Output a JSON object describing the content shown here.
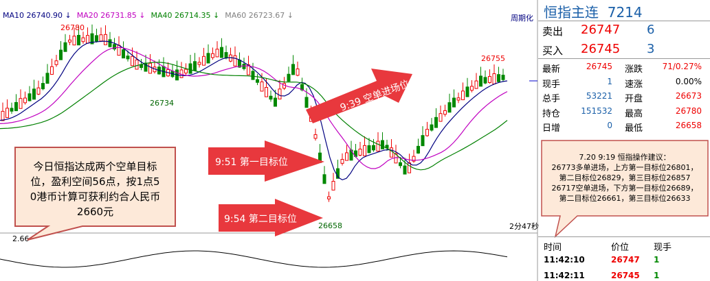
{
  "ma_legend": [
    {
      "label": "MA10",
      "value": "26740.90",
      "color": "#000080"
    },
    {
      "label": "MA20",
      "value": "26731.85",
      "color": "#c000c0"
    },
    {
      "label": "MA40",
      "value": "26714.35",
      "color": "#008000"
    },
    {
      "label": "MA60",
      "value": "26723.67",
      "color": "#808080"
    }
  ],
  "period_label": "周期化",
  "price_labels": {
    "high": "26780",
    "left_low": "26734",
    "low": "26658",
    "right_high": "26755",
    "bottom_left": "2.66"
  },
  "timer": "2分47秒",
  "callout": [
    "今日恒指达成两个空单目标",
    "位，盈利空间56点，按1点5",
    "0港币计算可获利约合人民币",
    "2660元"
  ],
  "arrows": [
    "9:39 空单进场位",
    "9:51 第一目标位",
    "9:54 第二目标位"
  ],
  "quote": {
    "title": "恒指主连",
    "code": "7214",
    "sell": {
      "label": "卖出",
      "price": "26747",
      "qty": "6"
    },
    "buy": {
      "label": "买入",
      "price": "26745",
      "qty": "3"
    },
    "stats": [
      [
        "最新",
        "26745",
        "涨跌",
        "71/0.27%"
      ],
      [
        "现手",
        "1",
        "速涨",
        "0.00%"
      ],
      [
        "总手",
        "53221",
        "开盘",
        "26673"
      ],
      [
        "持仓",
        "151532",
        "最高",
        "26780"
      ],
      [
        "日增",
        "0",
        "最低",
        "26658"
      ]
    ]
  },
  "advice": [
    "7.20 9:19 恒指操作建议：",
    "26773多单进场，上方第一目标位26801，",
    "第二目标位26829，第三目标位26857",
    "26717空单进场，下方第一目标位26689，",
    "第二目标位26661，第三目标位26633"
  ],
  "trades": {
    "header": [
      "时间",
      "价位",
      "现手"
    ],
    "rows": [
      [
        "11:42:10",
        "26747",
        "1"
      ],
      [
        "11:42:11",
        "26745",
        "1"
      ]
    ]
  }
}
